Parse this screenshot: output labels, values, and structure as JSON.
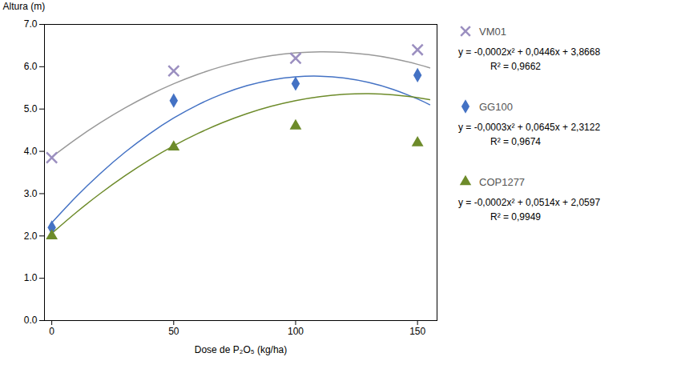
{
  "chart_data": {
    "type": "scatter",
    "xlabel": "Dose de P₂O₅ (kg/ha)",
    "ylabel": "Altura (m)",
    "xlim": [
      -3,
      158
    ],
    "ylim": [
      0,
      7
    ],
    "xticks": [
      0,
      50,
      100,
      150
    ],
    "yticks": [
      0,
      1,
      2,
      3,
      4,
      5,
      6,
      7
    ],
    "grid": false,
    "legend": "right",
    "x": [
      0,
      50,
      100,
      150
    ],
    "series": [
      {
        "name": "VM01",
        "color": "#9B8FC0",
        "marker": "x",
        "values": [
          3.85,
          5.9,
          6.2,
          6.4
        ],
        "equation": [
          "y = -0,0002x² + 0,0446x + 3,8668",
          "R² = 0,9662"
        ],
        "fit": {
          "color": "#999999",
          "x": [
            0,
            10,
            20,
            30,
            40,
            50,
            60,
            70,
            80,
            90,
            100,
            110,
            120,
            130,
            140,
            150,
            155
          ],
          "values": [
            3.8668,
            4.2928,
            4.6788,
            5.0248,
            5.3308,
            5.5968,
            5.8228,
            6.0088,
            6.1548,
            6.2608,
            6.3268,
            6.3528,
            6.3388,
            6.2848,
            6.1908,
            6.0568,
            5.9748
          ]
        }
      },
      {
        "name": "GG100",
        "color": "#4472C4",
        "marker": "diamond",
        "values": [
          2.2,
          5.2,
          5.6,
          5.8
        ],
        "equation": [
          "y = -0,0003x² + 0,0645x + 2,3122",
          "R² = 0,9674"
        ],
        "fit": {
          "color": "#4472C4",
          "x": [
            0,
            10,
            20,
            30,
            40,
            50,
            60,
            70,
            80,
            90,
            100,
            110,
            120,
            130,
            140,
            150,
            155
          ],
          "values": [
            2.3122,
            2.9272,
            3.4822,
            3.9772,
            4.4122,
            4.7872,
            5.1022,
            5.3572,
            5.5522,
            5.6872,
            5.7622,
            5.7772,
            5.7322,
            5.6272,
            5.4622,
            5.2372,
            5.1022
          ]
        }
      },
      {
        "name": "COP1277",
        "color": "#6D8B2A",
        "marker": "triangle",
        "values": [
          2.0,
          4.1,
          4.6,
          4.2
        ],
        "equation": [
          "y = -0,0002x² + 0,0514x + 2,0597",
          "R² = 0,9949"
        ],
        "fit": {
          "color": "#6D8B2A",
          "x": [
            0,
            10,
            20,
            30,
            40,
            50,
            60,
            70,
            80,
            90,
            100,
            110,
            120,
            130,
            140,
            150,
            155
          ],
          "values": [
            2.0597,
            2.5537,
            3.0077,
            3.4217,
            3.7957,
            4.1297,
            4.4237,
            4.6777,
            4.8917,
            5.0657,
            5.1997,
            5.2937,
            5.3477,
            5.3617,
            5.3357,
            5.2697,
            5.2217
          ]
        }
      }
    ]
  }
}
